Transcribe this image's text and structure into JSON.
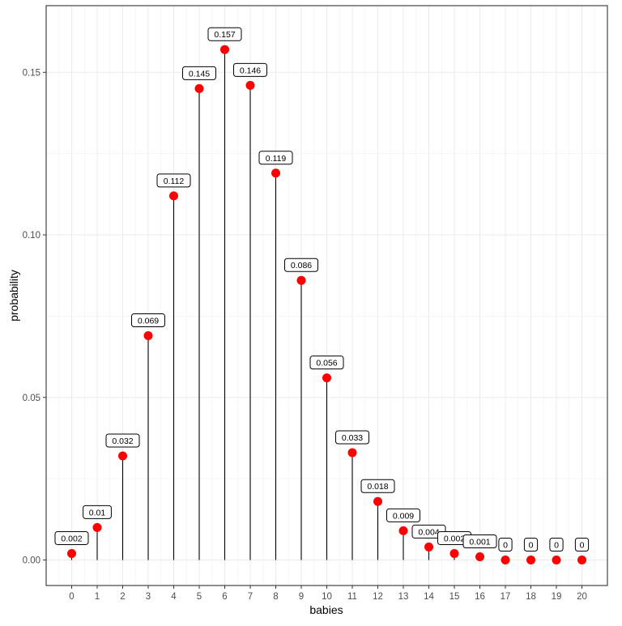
{
  "chart_data": {
    "type": "lollipop",
    "title": "",
    "xlabel": "babies",
    "ylabel": "probability",
    "x": [
      0,
      1,
      2,
      3,
      4,
      5,
      6,
      7,
      8,
      9,
      10,
      11,
      12,
      13,
      14,
      15,
      16,
      17,
      18,
      19,
      20
    ],
    "values": [
      0.002,
      0.01,
      0.032,
      0.069,
      0.112,
      0.145,
      0.157,
      0.146,
      0.119,
      0.086,
      0.056,
      0.033,
      0.018,
      0.009,
      0.004,
      0.002,
      0.001,
      0,
      0,
      0,
      0
    ],
    "labels": [
      "0.002",
      "0.01",
      "0.032",
      "0.069",
      "0.112",
      "0.145",
      "0.157",
      "0.146",
      "0.119",
      "0.086",
      "0.056",
      "0.033",
      "0.018",
      "0.009",
      "0.004",
      "0.002",
      "0.001",
      "0",
      "0",
      "0",
      "0"
    ],
    "xlim": [
      -1,
      21
    ],
    "ylim": [
      -0.00785,
      0.1705
    ],
    "yticks": [
      0,
      0.05,
      0.1,
      0.15
    ],
    "ytick_labels": [
      "0.00",
      "0.05",
      "0.10",
      "0.15"
    ],
    "grid": true,
    "legend": "none",
    "point_color": "#ff0000",
    "stem_color": "#000000"
  }
}
